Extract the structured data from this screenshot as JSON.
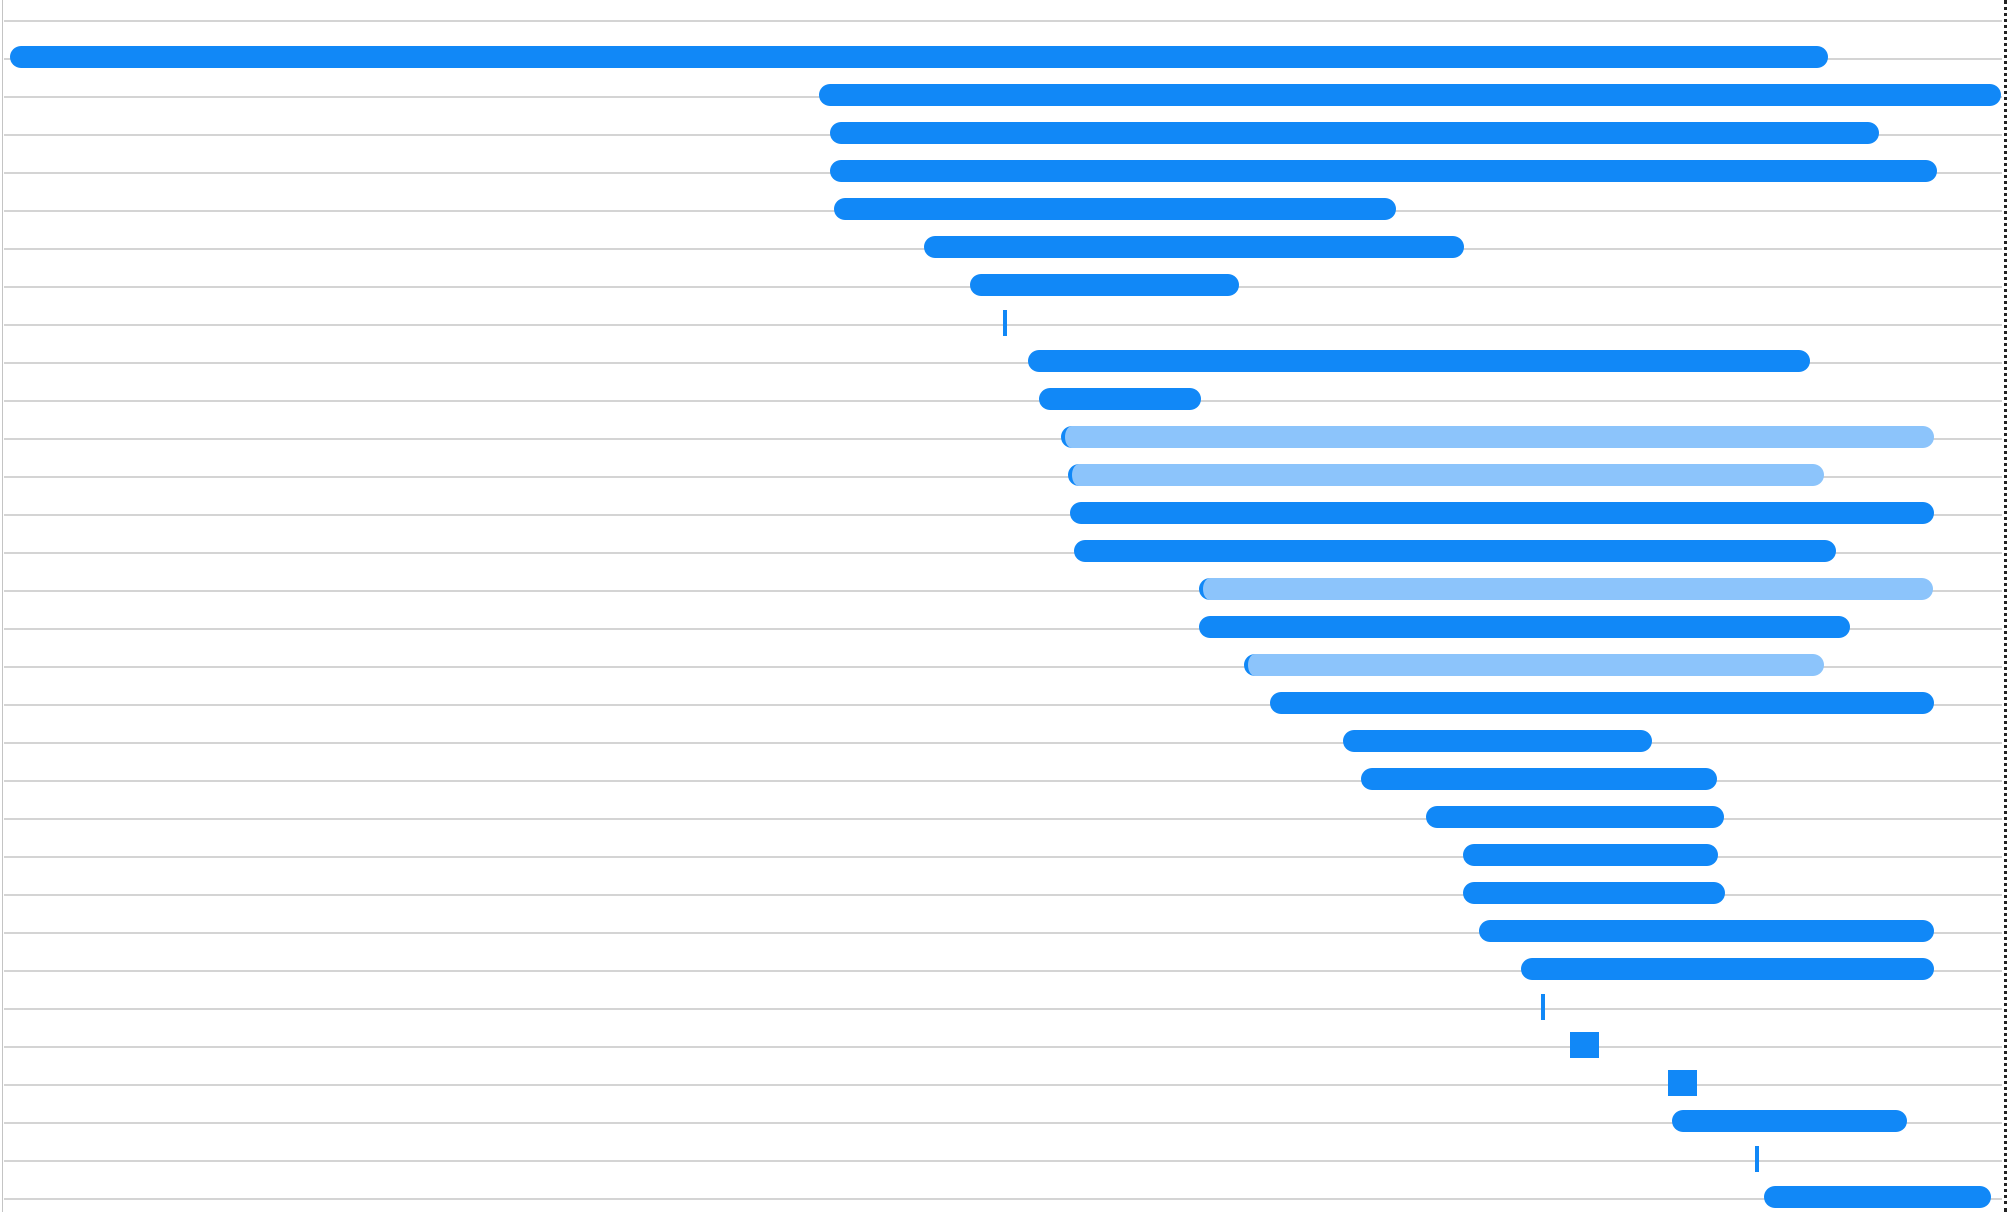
{
  "theme": {
    "bar_color": "#1188f7",
    "bar_color_light": "#8cc4fb",
    "background": "#ffffff",
    "grid_color": "#d4d4d4"
  },
  "waterfall": {
    "rows": [
      {
        "start": 0.0,
        "end": 1.0,
        "state": "complete"
      },
      {
        "start": 0.445,
        "end": 1.095,
        "state": "complete"
      },
      {
        "start": 0.451,
        "end": 1.028,
        "state": "complete"
      },
      {
        "start": 0.451,
        "end": 1.06,
        "state": "complete"
      },
      {
        "start": 0.453,
        "end": 0.762,
        "state": "complete"
      },
      {
        "start": 0.503,
        "end": 0.8,
        "state": "complete"
      },
      {
        "start": 0.528,
        "end": 0.676,
        "state": "complete"
      },
      {
        "start": 0.546,
        "end": 0.547,
        "state": "marker"
      },
      {
        "start": 0.56,
        "end": 0.99,
        "state": "complete"
      },
      {
        "start": 0.566,
        "end": 0.655,
        "state": "complete"
      },
      {
        "start": 0.578,
        "end": 1.058,
        "state": "pending"
      },
      {
        "start": 0.582,
        "end": 0.998,
        "state": "pending"
      },
      {
        "start": 0.583,
        "end": 1.058,
        "state": "complete"
      },
      {
        "start": 0.585,
        "end": 1.004,
        "state": "complete"
      },
      {
        "start": 0.654,
        "end": 1.058,
        "state": "pending"
      },
      {
        "start": 0.654,
        "end": 1.012,
        "state": "complete"
      },
      {
        "start": 0.679,
        "end": 0.998,
        "state": "pending"
      },
      {
        "start": 0.693,
        "end": 1.058,
        "state": "complete"
      },
      {
        "start": 0.733,
        "end": 0.903,
        "state": "complete"
      },
      {
        "start": 0.743,
        "end": 0.939,
        "state": "complete"
      },
      {
        "start": 0.779,
        "end": 0.943,
        "state": "complete"
      },
      {
        "start": 0.799,
        "end": 0.939,
        "state": "complete"
      },
      {
        "start": 0.799,
        "end": 0.943,
        "state": "complete"
      },
      {
        "start": 0.808,
        "end": 1.058,
        "state": "complete"
      },
      {
        "start": 0.831,
        "end": 1.058,
        "state": "complete"
      },
      {
        "start": 0.842,
        "end": 0.843,
        "state": "marker"
      },
      {
        "start": 0.858,
        "end": 0.874,
        "state": "block"
      },
      {
        "start": 0.912,
        "end": 0.928,
        "state": "block"
      },
      {
        "start": 0.914,
        "end": 1.043,
        "state": "complete"
      },
      {
        "start": 0.96,
        "end": 0.961,
        "state": "marker"
      },
      {
        "start": 0.965,
        "end": 1.09,
        "state": "complete"
      }
    ]
  }
}
